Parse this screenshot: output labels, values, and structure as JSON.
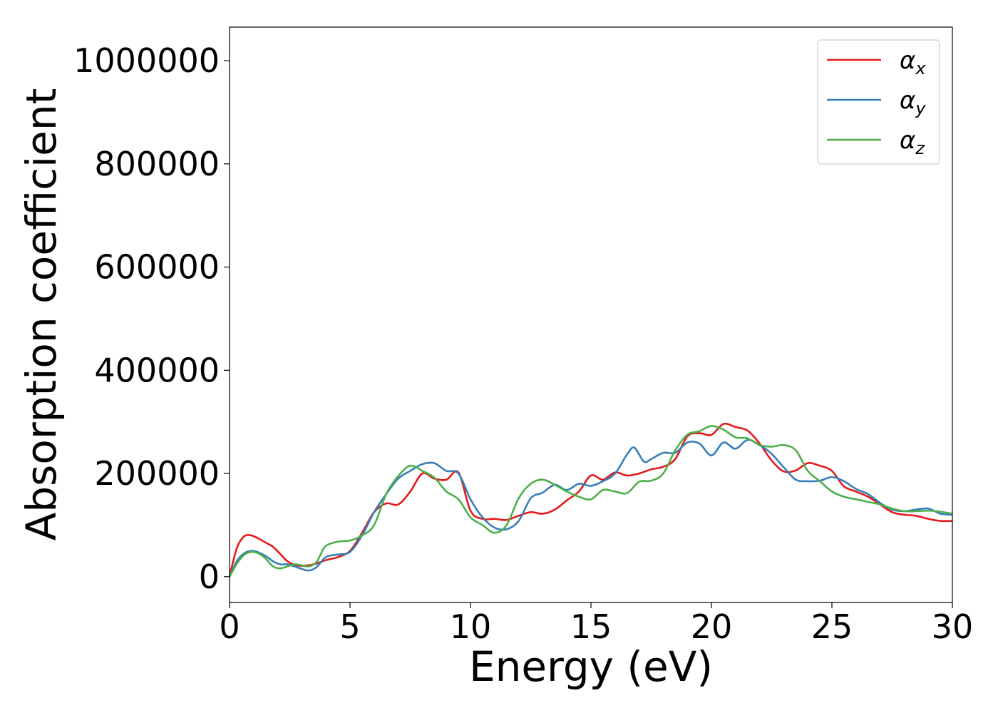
{
  "chart_data": {
    "type": "line",
    "title": "",
    "xlabel": "Energy (eV)",
    "ylabel": "Absorption coefficient",
    "xlim": [
      0,
      30
    ],
    "ylim": [
      -50000,
      1065000
    ],
    "xticks": [
      0,
      5,
      10,
      15,
      20,
      25,
      30
    ],
    "xtick_labels": [
      "0",
      "5",
      "10",
      "15",
      "20",
      "25",
      "30"
    ],
    "yticks": [
      0,
      200000,
      400000,
      600000,
      800000,
      1000000
    ],
    "ytick_labels": [
      "0",
      "200000",
      "400000",
      "600000",
      "800000",
      "1000000"
    ],
    "grid": false,
    "legend_position": "top-right",
    "series": [
      {
        "name": "αx",
        "base": "α",
        "sub": "x",
        "color": "#e41a1c",
        "x": [
          0,
          0.3,
          0.6,
          0.9,
          1.2,
          1.5,
          1.8,
          2.1,
          2.4,
          2.7,
          3.0,
          3.5,
          4.0,
          4.5,
          5.0,
          5.5,
          6.0,
          6.5,
          7.0,
          7.5,
          8.0,
          8.5,
          9.0,
          9.5,
          10.0,
          10.5,
          11.0,
          11.5,
          12.0,
          12.5,
          13.0,
          13.5,
          14.0,
          14.5,
          15.0,
          15.5,
          16.0,
          16.5,
          17.0,
          17.5,
          18.0,
          18.5,
          19.0,
          19.5,
          20.0,
          20.5,
          21.0,
          21.5,
          22.0,
          22.5,
          23.0,
          23.5,
          24.0,
          24.5,
          25.0,
          25.5,
          26.0,
          26.5,
          27.0,
          27.5,
          28.0,
          28.5,
          29.0,
          29.5,
          30.0
        ],
        "values": [
          0,
          55000,
          78000,
          80000,
          74000,
          66000,
          58000,
          44000,
          30000,
          23000,
          21000,
          24000,
          32000,
          38000,
          50000,
          85000,
          125000,
          142000,
          140000,
          165000,
          200000,
          190000,
          188000,
          202000,
          128000,
          112000,
          112000,
          110000,
          118000,
          125000,
          122000,
          130000,
          148000,
          165000,
          196000,
          188000,
          202000,
          196000,
          200000,
          208000,
          213000,
          228000,
          272000,
          278000,
          275000,
          296000,
          290000,
          283000,
          258000,
          225000,
          204000,
          206000,
          220000,
          215000,
          205000,
          175000,
          165000,
          155000,
          140000,
          125000,
          120000,
          118000,
          112000,
          108000,
          108000
        ]
      },
      {
        "name": "αy",
        "base": "α",
        "sub": "y",
        "color": "#377eb8",
        "x": [
          0,
          0.3,
          0.6,
          0.9,
          1.2,
          1.5,
          1.8,
          2.1,
          2.4,
          2.7,
          3.0,
          3.3,
          3.6,
          4.0,
          4.5,
          5.0,
          5.5,
          6.0,
          6.5,
          7.0,
          7.5,
          8.0,
          8.5,
          9.0,
          9.5,
          10.0,
          10.5,
          11.0,
          11.5,
          12.0,
          12.5,
          13.0,
          13.5,
          14.0,
          14.5,
          15.0,
          15.5,
          16.0,
          16.5,
          16.8,
          17.2,
          17.5,
          18.0,
          18.5,
          19.0,
          19.5,
          20.0,
          20.5,
          21.0,
          21.5,
          22.0,
          22.5,
          23.0,
          23.5,
          24.0,
          24.5,
          25.0,
          25.5,
          26.0,
          26.5,
          27.0,
          27.5,
          28.0,
          28.5,
          29.0,
          29.5,
          30.0
        ],
        "values": [
          0,
          30000,
          45000,
          50000,
          47000,
          40000,
          30000,
          24000,
          24000,
          20000,
          15000,
          12000,
          18000,
          38000,
          43000,
          48000,
          80000,
          125000,
          160000,
          190000,
          205000,
          218000,
          220000,
          205000,
          200000,
          150000,
          115000,
          95000,
          92000,
          108000,
          152000,
          163000,
          178000,
          168000,
          180000,
          176000,
          185000,
          200000,
          237000,
          250000,
          223000,
          228000,
          240000,
          240000,
          260000,
          258000,
          235000,
          260000,
          248000,
          265000,
          255000,
          238000,
          212000,
          188000,
          185000,
          186000,
          193000,
          185000,
          170000,
          160000,
          143000,
          130000,
          127000,
          130000,
          132000,
          122000,
          120000
        ]
      },
      {
        "name": "αz",
        "base": "α",
        "sub": "z",
        "color": "#4daf4a",
        "x": [
          0,
          0.3,
          0.6,
          0.9,
          1.2,
          1.5,
          1.8,
          2.1,
          2.4,
          2.7,
          3.0,
          3.3,
          3.6,
          3.8,
          4.0,
          4.5,
          5.0,
          5.5,
          6.0,
          6.5,
          7.0,
          7.5,
          8.0,
          8.5,
          9.0,
          9.5,
          10.0,
          10.5,
          11.0,
          11.5,
          12.0,
          12.5,
          13.0,
          13.5,
          14.0,
          14.5,
          15.0,
          15.5,
          16.0,
          16.5,
          17.0,
          17.5,
          18.0,
          18.5,
          19.0,
          19.5,
          20.0,
          20.5,
          21.0,
          21.5,
          22.0,
          22.5,
          23.0,
          23.5,
          24.0,
          24.5,
          25.0,
          25.5,
          26.0,
          26.5,
          27.0,
          27.5,
          28.0,
          28.5,
          29.0,
          29.5,
          30.0
        ],
        "values": [
          0,
          25000,
          42000,
          48000,
          45000,
          35000,
          20000,
          16000,
          20000,
          24000,
          22000,
          20000,
          28000,
          45000,
          60000,
          68000,
          70000,
          80000,
          100000,
          160000,
          195000,
          215000,
          205000,
          192000,
          165000,
          150000,
          115000,
          100000,
          85000,
          100000,
          152000,
          180000,
          188000,
          178000,
          165000,
          155000,
          150000,
          168000,
          165000,
          162000,
          184000,
          186000,
          200000,
          245000,
          275000,
          282000,
          292000,
          285000,
          270000,
          268000,
          255000,
          252000,
          255000,
          245000,
          205000,
          185000,
          165000,
          155000,
          150000,
          145000,
          140000,
          132000,
          127000,
          127000,
          128000,
          126000,
          122000
        ]
      }
    ]
  }
}
